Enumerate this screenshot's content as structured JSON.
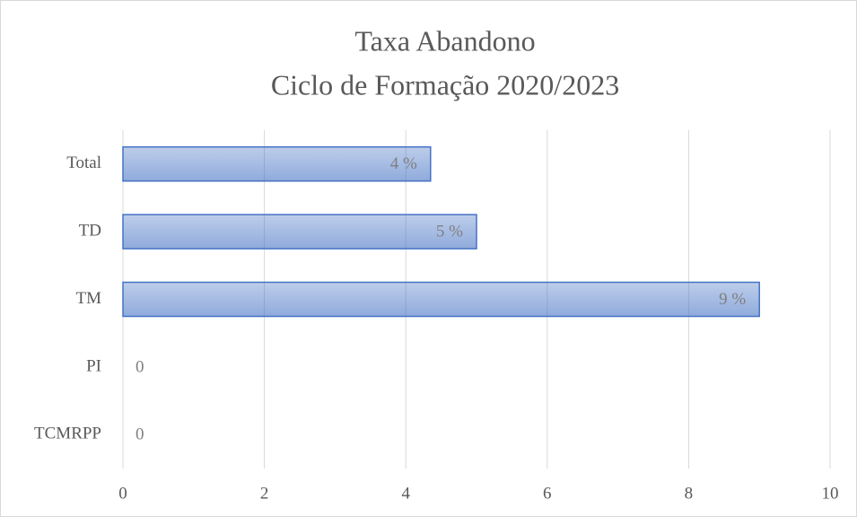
{
  "chart_data": {
    "type": "bar",
    "orientation": "horizontal",
    "title": [
      "Taxa Abandono",
      "Ciclo de Formação 2020/2023"
    ],
    "categories": [
      "Total",
      "TD",
      "TM",
      "PI",
      "TCMRPP"
    ],
    "values": [
      4.35,
      5,
      9,
      0,
      0
    ],
    "value_labels": [
      "4 %",
      "5 %",
      "9 %",
      "0",
      "0"
    ],
    "color": "#4472c4",
    "xlim": [
      0,
      10
    ],
    "xticks": [
      0,
      2,
      4,
      6,
      8,
      10
    ],
    "grid": true
  }
}
